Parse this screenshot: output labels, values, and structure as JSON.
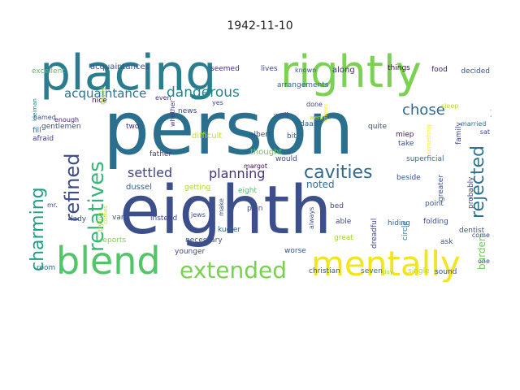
{
  "title": "1942-11-10",
  "words": [
    {
      "text": "person",
      "color": "#2a6f8e"
    },
    {
      "text": "eighth",
      "color": "#3c4f8a"
    },
    {
      "text": "placing",
      "color": "#2a7d8e"
    },
    {
      "text": "rightly",
      "color": "#7bd151"
    },
    {
      "text": "blend",
      "color": "#52c569"
    },
    {
      "text": "mentally",
      "color": "#f2e51d"
    },
    {
      "text": "extended",
      "color": "#7ad151"
    },
    {
      "text": "charming",
      "color": "#1f9e89"
    },
    {
      "text": "relatives",
      "color": "#35b779"
    },
    {
      "text": "refined",
      "color": "#3e4a89"
    },
    {
      "text": "rejected",
      "color": "#2c728e"
    },
    {
      "text": "cavities",
      "color": "#31688e"
    },
    {
      "text": "settled",
      "color": "#414487"
    },
    {
      "text": "planning",
      "color": "#463480"
    },
    {
      "text": "chose",
      "color": "#2f6b8e"
    },
    {
      "text": "dangerous",
      "color": "#24868e"
    },
    {
      "text": "acquaintance",
      "color": "#2c718e"
    },
    {
      "text": "noted",
      "color": "#2e6e8e"
    },
    {
      "text": "burden",
      "color": "#6ece58"
    },
    {
      "text": "acquaintances",
      "color": "#3b528b"
    },
    {
      "text": "seemed",
      "color": "#472d7b"
    },
    {
      "text": "lives",
      "color": "#3f4788"
    },
    {
      "text": "known",
      "color": "#3b528b"
    },
    {
      "text": "along",
      "color": "#472c7a"
    },
    {
      "text": "things",
      "color": "#440154"
    },
    {
      "text": "food",
      "color": "#482475"
    },
    {
      "text": "decided",
      "color": "#3b528b"
    },
    {
      "text": "excellent",
      "color": "#52c569"
    },
    {
      "text": "really",
      "color": "#a0da39"
    },
    {
      "text": "news",
      "color": "#3e4989"
    },
    {
      "text": "done",
      "color": "#3f4889"
    },
    {
      "text": "arrangements",
      "color": "#33638d"
    },
    {
      "text": "sleep",
      "color": "#b5de2b"
    },
    {
      "text": "married",
      "color": "#2c718e"
    },
    {
      "text": "kleiman",
      "color": "#26828e"
    },
    {
      "text": "gentlemen",
      "color": "#3e4a89"
    },
    {
      "text": "nice",
      "color": "#440154"
    },
    {
      "text": "even",
      "color": "#46327e"
    },
    {
      "text": "yes",
      "color": "#3e4a89"
    },
    {
      "text": "went",
      "color": "#b8de29"
    },
    {
      "text": "knows",
      "color": "#fde725"
    },
    {
      "text": "bring",
      "color": "#3e4989"
    },
    {
      "text": "named",
      "color": "#3b528b"
    },
    {
      "text": "enough",
      "color": "#482071"
    },
    {
      "text": "two",
      "color": "#482878"
    },
    {
      "text": "whether",
      "color": "#443983"
    },
    {
      "text": "well",
      "color": "#375a8c"
    },
    {
      "text": "albert",
      "color": "#3e4989"
    },
    {
      "text": "bit",
      "color": "#38598c"
    },
    {
      "text": "quite",
      "color": "#3f4889"
    },
    {
      "text": "miep",
      "color": "#481a6c"
    },
    {
      "text": "take",
      "color": "#3b528b"
    },
    {
      "text": "sat",
      "color": "#3f4788"
    },
    {
      "text": "fill",
      "color": "#2c728e"
    },
    {
      "text": "afraid",
      "color": "#424086"
    },
    {
      "text": "difficult",
      "color": "#bddf26"
    },
    {
      "text": "daan",
      "color": "#33638d"
    },
    {
      "text": "family",
      "color": "#3e4a89"
    },
    {
      "text": "something",
      "color": "#fde725"
    },
    {
      "text": "father",
      "color": "#453581"
    },
    {
      "text": "thought",
      "color": "#5ec962"
    },
    {
      "text": "would",
      "color": "#3b528b"
    },
    {
      "text": "superficial",
      "color": "#2c728e"
    },
    {
      "text": "margot",
      "color": "#440154"
    },
    {
      "text": "dussel",
      "color": "#375a8c"
    },
    {
      "text": "getting",
      "color": "#a8db34"
    },
    {
      "text": "eight",
      "color": "#4ac16d"
    },
    {
      "text": "greater",
      "color": "#3b528b"
    },
    {
      "text": "probably",
      "color": "#3f4788"
    },
    {
      "text": "beside",
      "color": "#3b528b"
    },
    {
      "text": "mr.",
      "color": "#3f4788"
    },
    {
      "text": "van",
      "color": "#3b528b"
    },
    {
      "text": "trying",
      "color": "#a2da37"
    },
    {
      "text": "comes",
      "color": "#c2df23"
    },
    {
      "text": "jews",
      "color": "#3e4989"
    },
    {
      "text": "make",
      "color": "#3b528b"
    },
    {
      "text": "plan",
      "color": "#3f4788"
    },
    {
      "text": "point",
      "color": "#3b528b"
    },
    {
      "text": "dreadful",
      "color": "#3f4788"
    },
    {
      "text": "always",
      "color": "#3b528b"
    },
    {
      "text": "bed",
      "color": "#3e4989"
    },
    {
      "text": "hiding",
      "color": "#33638d"
    },
    {
      "text": "folding",
      "color": "#3b528b"
    },
    {
      "text": "circle",
      "color": "#2d708e"
    },
    {
      "text": "dentist",
      "color": "#3b528b"
    },
    {
      "text": "come",
      "color": "#3f4788"
    },
    {
      "text": "lady",
      "color": "#3b528b"
    },
    {
      "text": "instead",
      "color": "#3e4989"
    },
    {
      "text": "kugler",
      "color": "#33638d"
    },
    {
      "text": "reports",
      "color": "#7fd34e"
    },
    {
      "text": "necessary",
      "color": "#3b528b"
    },
    {
      "text": "able",
      "color": "#3e4989"
    },
    {
      "text": "great",
      "color": "#9fda3a"
    },
    {
      "text": "ask",
      "color": "#3b528b"
    },
    {
      "text": "younger",
      "color": "#3f4788"
    },
    {
      "text": "worse",
      "color": "#3b528b"
    },
    {
      "text": "one",
      "color": "#3f4788"
    },
    {
      "text": "room",
      "color": "#2c728e"
    },
    {
      "text": "christian",
      "color": "#3b528b"
    },
    {
      "text": "seven",
      "color": "#2c728e"
    },
    {
      "text": "day",
      "color": "#9fda3a"
    },
    {
      "text": "single",
      "color": "#b5de2b"
    },
    {
      "text": "sound",
      "color": "#3b528b"
    }
  ]
}
